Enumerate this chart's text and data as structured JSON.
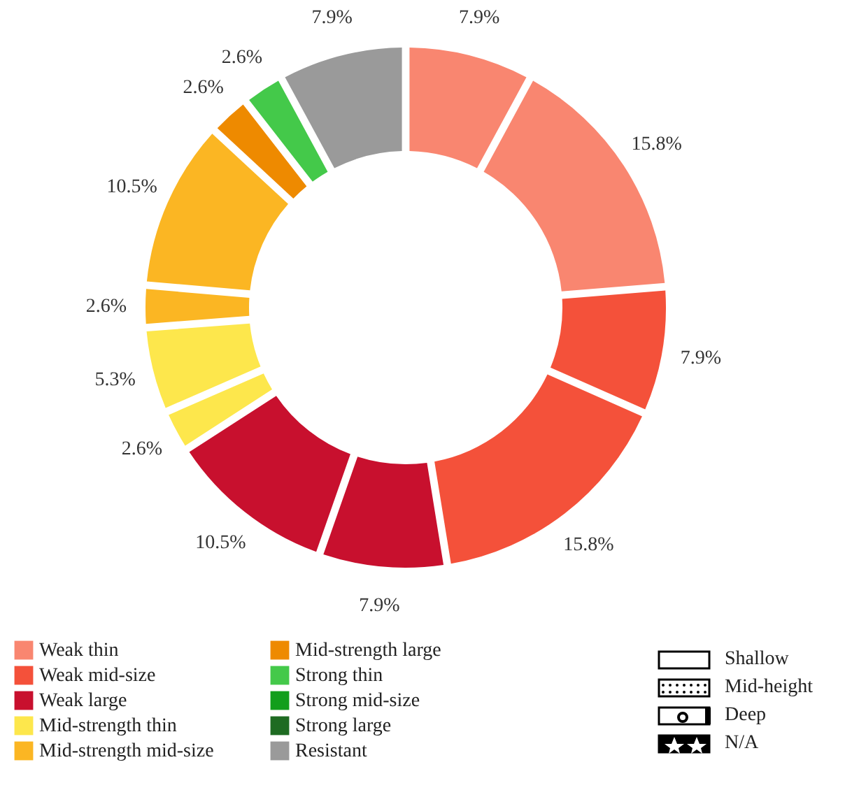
{
  "chart_data": {
    "type": "donut",
    "categories": [
      "Weak thin",
      null,
      "Weak mid-size",
      null,
      "Weak large",
      null,
      "Mid-strength thin",
      null,
      "Mid-strength mid-size",
      null,
      "Mid-strength large",
      "Strong thin",
      "Strong mid-size",
      "Strong large",
      "Resistant"
    ],
    "values": [
      7.9,
      15.8,
      7.9,
      15.8,
      7.9,
      10.5,
      2.6,
      5.3,
      2.6,
      10.5,
      2.6,
      2.6,
      0,
      0,
      7.9
    ],
    "value_labels": [
      "7.9%",
      "15.8%",
      "7.9%",
      "15.8%",
      "7.9%",
      "10.5%",
      "2.6%",
      "5.3%",
      "2.6%",
      "10.5%",
      "2.6%",
      "2.6%",
      null,
      null,
      "7.9%"
    ],
    "colors": [
      "#f98670",
      "#f98670",
      "#f4513a",
      "#f4513a",
      "#c8102e",
      "#c8102e",
      "#fde74c",
      "#fde74c",
      "#fbb623",
      "#fbb623",
      "#ee8a00",
      "#44c94a",
      "#129e1c",
      "#1e6b22",
      "#9a9a9a"
    ],
    "legend": "bottom",
    "annotations": [
      "Shallow",
      "Mid-height",
      "Deep",
      "N/A"
    ]
  }
}
